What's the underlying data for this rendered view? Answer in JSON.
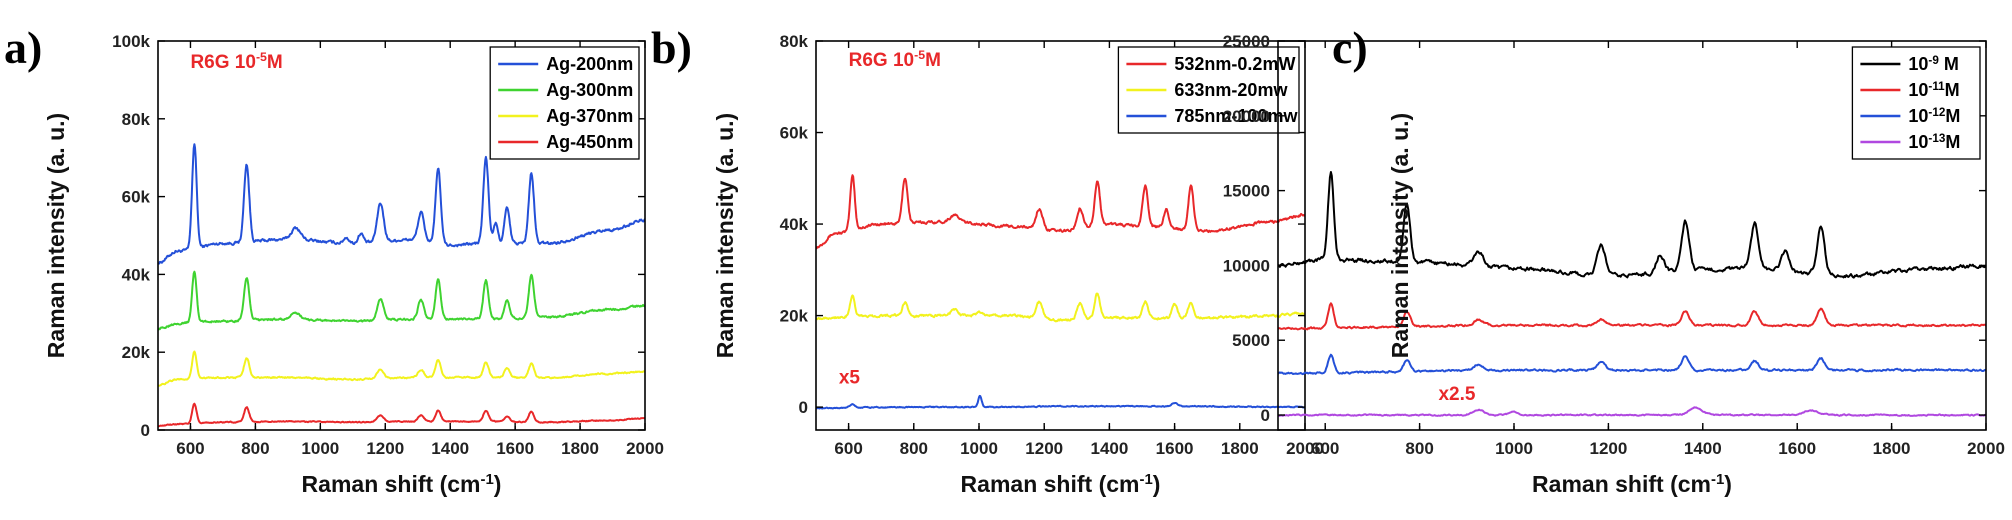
{
  "chart_data": [
    {
      "type": "line",
      "panel_label": "a)",
      "xlabel": "Raman shift (cm-1)",
      "ylabel": "Raman intensity (a. u.)",
      "xlim": [
        500,
        2000
      ],
      "ylim": [
        0,
        100000
      ],
      "x_ticks": [
        600,
        800,
        1000,
        1200,
        1400,
        1600,
        1800,
        2000
      ],
      "y_ticks": [
        0,
        20000,
        40000,
        60000,
        80000,
        100000
      ],
      "y_tick_labels": [
        "0",
        "20k",
        "40k",
        "60k",
        "80k",
        "100k"
      ],
      "legend_position": "top-right",
      "annotations": [
        {
          "text": "R6G 10-5M",
          "base": "R6G 10",
          "sup": "-5",
          "tail": "M",
          "color": "#e8282a",
          "x": 600,
          "y": 93000
        }
      ],
      "series": [
        {
          "name": "Ag-200nm",
          "color": "#2450d8",
          "baseline": [
            [
              500,
              43000
            ],
            [
              560,
              46000
            ],
            [
              700,
              48000
            ],
            [
              900,
              49000
            ],
            [
              1100,
              48000
            ],
            [
              1300,
              49000
            ],
            [
              1400,
              47500
            ],
            [
              1500,
              48000
            ],
            [
              1700,
              48000
            ],
            [
              1900,
              51500
            ],
            [
              2000,
              54000
            ]
          ],
          "peaks": [
            [
              612,
              27000,
              7
            ],
            [
              773,
              20000,
              8
            ],
            [
              925,
              3000,
              14
            ],
            [
              1080,
              1500,
              8
            ],
            [
              1125,
              2500,
              8
            ],
            [
              1185,
              10000,
              10
            ],
            [
              1310,
              7000,
              9
            ],
            [
              1363,
              19000,
              8
            ],
            [
              1510,
              22000,
              8
            ],
            [
              1540,
              5000,
              7
            ],
            [
              1575,
              9000,
              8
            ],
            [
              1650,
              18000,
              8
            ]
          ],
          "noise": 700
        },
        {
          "name": "Ag-300nm",
          "color": "#3fd330",
          "baseline": [
            [
              500,
              26000
            ],
            [
              560,
              27500
            ],
            [
              700,
              28000
            ],
            [
              900,
              28500
            ],
            [
              1100,
              28000
            ],
            [
              1300,
              28500
            ],
            [
              1500,
              28500
            ],
            [
              1700,
              29000
            ],
            [
              1900,
              31000
            ],
            [
              2000,
              32000
            ]
          ],
          "peaks": [
            [
              612,
              13000,
              7
            ],
            [
              773,
              11000,
              8
            ],
            [
              925,
              1500,
              14
            ],
            [
              1185,
              5500,
              10
            ],
            [
              1310,
              5000,
              9
            ],
            [
              1363,
              10000,
              8
            ],
            [
              1510,
              10000,
              8
            ],
            [
              1575,
              4500,
              8
            ],
            [
              1650,
              11000,
              8
            ]
          ],
          "noise": 500
        },
        {
          "name": "Ag-370nm",
          "color": "#f2f21e",
          "baseline": [
            [
              500,
              11500
            ],
            [
              560,
              13000
            ],
            [
              700,
              13500
            ],
            [
              900,
              13500
            ],
            [
              1100,
              13000
            ],
            [
              1300,
              13500
            ],
            [
              1500,
              13500
            ],
            [
              1700,
              13500
            ],
            [
              1900,
              14500
            ],
            [
              2000,
              15000
            ]
          ],
          "peaks": [
            [
              612,
              7000,
              7
            ],
            [
              773,
              5000,
              8
            ],
            [
              1185,
              2500,
              10
            ],
            [
              1310,
              2000,
              9
            ],
            [
              1363,
              4500,
              8
            ],
            [
              1510,
              4000,
              8
            ],
            [
              1575,
              2500,
              8
            ],
            [
              1650,
              3500,
              8
            ]
          ],
          "noise": 350
        },
        {
          "name": "Ag-450nm",
          "color": "#e8282a",
          "baseline": [
            [
              500,
              1000
            ],
            [
              560,
              1500
            ],
            [
              700,
              2000
            ],
            [
              900,
              2200
            ],
            [
              1100,
              2000
            ],
            [
              1300,
              2200
            ],
            [
              1500,
              2200
            ],
            [
              1700,
              2000
            ],
            [
              1900,
              2500
            ],
            [
              2000,
              3000
            ]
          ],
          "peaks": [
            [
              612,
              5000,
              7
            ],
            [
              773,
              3800,
              8
            ],
            [
              1185,
              1600,
              10
            ],
            [
              1310,
              1500,
              9
            ],
            [
              1363,
              2800,
              8
            ],
            [
              1510,
              2800,
              8
            ],
            [
              1575,
              1400,
              8
            ],
            [
              1650,
              2800,
              8
            ]
          ],
          "noise": 250
        }
      ]
    },
    {
      "type": "line",
      "panel_label": "b)",
      "xlabel": "Raman shift (cm-1)",
      "ylabel": "Raman intensity (a. u.)",
      "xlim": [
        500,
        2000
      ],
      "ylim": [
        -5000,
        80000
      ],
      "x_ticks": [
        600,
        800,
        1000,
        1200,
        1400,
        1600,
        1800,
        2000
      ],
      "y_ticks": [
        0,
        20000,
        40000,
        60000,
        80000
      ],
      "y_tick_labels": [
        "0",
        "20k",
        "40k",
        "60k",
        "80k"
      ],
      "legend_position": "top-right",
      "annotations": [
        {
          "text": "R6G 10-5M",
          "base": "R6G 10",
          "sup": "-5",
          "tail": "M",
          "color": "#e8282a",
          "x": 600,
          "y": 74500
        },
        {
          "text": "x5",
          "base": "x5",
          "sup": "",
          "tail": "",
          "color": "#e8282a",
          "x": 570,
          "y": 5200
        }
      ],
      "series": [
        {
          "name": "532nm-0.2mW",
          "color": "#e8282a",
          "baseline": [
            [
              500,
              35000
            ],
            [
              560,
              38000
            ],
            [
              700,
              40000
            ],
            [
              900,
              40500
            ],
            [
              1100,
              39500
            ],
            [
              1250,
              38500
            ],
            [
              1400,
              40000
            ],
            [
              1500,
              39500
            ],
            [
              1700,
              38500
            ],
            [
              1900,
              40500
            ],
            [
              2000,
              42000
            ]
          ],
          "peaks": [
            [
              612,
              12000,
              7
            ],
            [
              773,
              10000,
              8
            ],
            [
              925,
              1500,
              14
            ],
            [
              1185,
              4500,
              10
            ],
            [
              1310,
              4500,
              9
            ],
            [
              1363,
              9500,
              8
            ],
            [
              1510,
              9000,
              8
            ],
            [
              1575,
              4000,
              8
            ],
            [
              1650,
              9500,
              8
            ]
          ],
          "noise": 550
        },
        {
          "name": "633nm-20mw",
          "color": "#f2f21e",
          "baseline": [
            [
              500,
              19500
            ],
            [
              700,
              20000
            ],
            [
              900,
              20000
            ],
            [
              1100,
              20000
            ],
            [
              1250,
              19000
            ],
            [
              1400,
              19500
            ],
            [
              1500,
              19500
            ],
            [
              1700,
              19500
            ],
            [
              1900,
              20000
            ],
            [
              2000,
              20500
            ]
          ],
          "peaks": [
            [
              612,
              4500,
              7
            ],
            [
              773,
              2800,
              8
            ],
            [
              925,
              1200,
              12
            ],
            [
              1000,
              800,
              8
            ],
            [
              1185,
              3500,
              10
            ],
            [
              1310,
              3500,
              9
            ],
            [
              1363,
              5500,
              8
            ],
            [
              1510,
              3500,
              8
            ],
            [
              1600,
              3000,
              8
            ],
            [
              1650,
              3500,
              8
            ]
          ],
          "noise": 500
        },
        {
          "name": "785nm-100mw",
          "color": "#2450d8",
          "baseline": [
            [
              500,
              -200
            ],
            [
              800,
              0
            ],
            [
              1000,
              0
            ],
            [
              1300,
              200
            ],
            [
              1600,
              200
            ],
            [
              2000,
              0
            ]
          ],
          "peaks": [
            [
              612,
              700,
              8
            ],
            [
              1003,
              2500,
              5
            ],
            [
              1600,
              700,
              8
            ]
          ],
          "noise": 200
        }
      ]
    },
    {
      "type": "line",
      "panel_label": "c)",
      "xlabel": "Raman shift (cm-1)",
      "ylabel": "Raman intensity (a. u.)",
      "xlim": [
        500,
        2000
      ],
      "ylim": [
        -1000,
        25000
      ],
      "x_ticks": [
        600,
        800,
        1000,
        1200,
        1400,
        1600,
        1800,
        2000
      ],
      "y_ticks": [
        0,
        5000,
        10000,
        15000,
        20000,
        25000
      ],
      "y_tick_labels": [
        "0",
        "5000",
        "10000",
        "15000",
        "20000",
        "25000"
      ],
      "legend_position": "top-right",
      "annotations": [
        {
          "text": "x2.5",
          "base": "x2.5",
          "sup": "",
          "tail": "",
          "color": "#e8282a",
          "x": 840,
          "y": 1000
        }
      ],
      "series": [
        {
          "name": "10-9 M",
          "base": "10",
          "sup": "-9",
          "tail": " M",
          "color": "#000000",
          "baseline": [
            [
              500,
              10000
            ],
            [
              600,
              10400
            ],
            [
              800,
              10200
            ],
            [
              1000,
              9800
            ],
            [
              1200,
              9300
            ],
            [
              1400,
              9700
            ],
            [
              1500,
              9800
            ],
            [
              1700,
              9300
            ],
            [
              1900,
              9800
            ],
            [
              2000,
              10000
            ]
          ],
          "peaks": [
            [
              612,
              5800,
              6
            ],
            [
              773,
              3800,
              7
            ],
            [
              925,
              1000,
              10
            ],
            [
              1185,
              2000,
              9
            ],
            [
              1310,
              1200,
              8
            ],
            [
              1363,
              3300,
              8
            ],
            [
              1510,
              3000,
              8
            ],
            [
              1575,
              1300,
              8
            ],
            [
              1650,
              3200,
              8
            ]
          ],
          "noise": 260
        },
        {
          "name": "10-11M",
          "base": "10",
          "sup": "-11",
          "tail": "M",
          "color": "#e8282a",
          "baseline": [
            [
              500,
              5800
            ],
            [
              1000,
              6000
            ],
            [
              1500,
              6000
            ],
            [
              2000,
              6000
            ]
          ],
          "peaks": [
            [
              612,
              1600,
              6
            ],
            [
              773,
              1000,
              7
            ],
            [
              925,
              400,
              10
            ],
            [
              1185,
              400,
              9
            ],
            [
              1363,
              900,
              8
            ],
            [
              1510,
              900,
              8
            ],
            [
              1650,
              1100,
              8
            ]
          ],
          "noise": 130
        },
        {
          "name": "10-12M",
          "base": "10",
          "sup": "-12",
          "tail": "M",
          "color": "#2450d8",
          "baseline": [
            [
              500,
              2800
            ],
            [
              1000,
              3000
            ],
            [
              1500,
              3000
            ],
            [
              2000,
              3000
            ]
          ],
          "peaks": [
            [
              612,
              1200,
              6
            ],
            [
              773,
              700,
              7
            ],
            [
              925,
              400,
              10
            ],
            [
              1185,
              500,
              9
            ],
            [
              1363,
              900,
              8
            ],
            [
              1510,
              600,
              8
            ],
            [
              1650,
              800,
              8
            ]
          ],
          "noise": 130
        },
        {
          "name": "10-13M",
          "base": "10",
          "sup": "-13",
          "tail": "M",
          "color": "#b048e0",
          "baseline": [
            [
              500,
              0
            ],
            [
              1000,
              0
            ],
            [
              1500,
              0
            ],
            [
              2000,
              0
            ]
          ],
          "peaks": [
            [
              925,
              350,
              12
            ],
            [
              1000,
              200,
              10
            ],
            [
              1385,
              500,
              14
            ],
            [
              1630,
              300,
              16
            ]
          ],
          "noise": 90
        }
      ]
    }
  ]
}
